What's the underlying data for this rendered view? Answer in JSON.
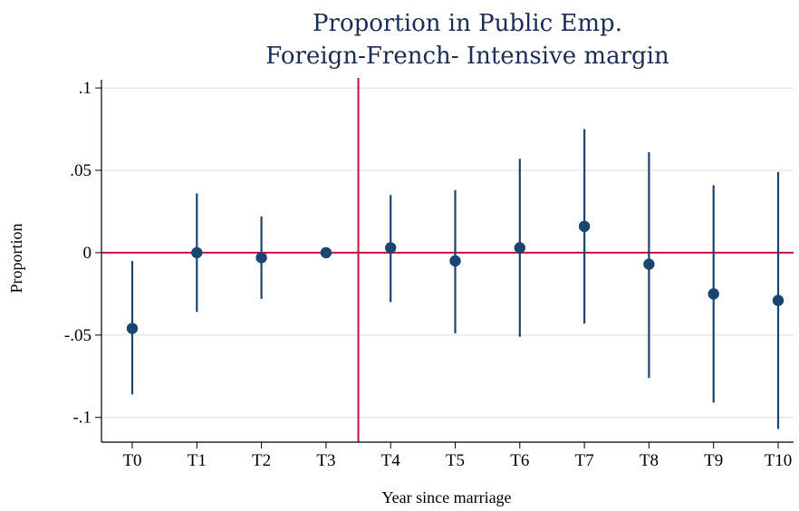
{
  "chart_data": {
    "type": "scatter",
    "title": [
      "Proportion in Public Emp.",
      "Foreign-French- Intensive margin"
    ],
    "xlabel": "Year since marriage",
    "ylabel": "Proportion",
    "categories": [
      "T0",
      "T1",
      "T2",
      "T3",
      "T4",
      "T5",
      "T6",
      "T7",
      "T8",
      "T9",
      "T10"
    ],
    "values": [
      -0.046,
      0.0,
      -0.003,
      0.0,
      0.003,
      -0.005,
      0.003,
      0.016,
      -0.007,
      -0.025,
      -0.029
    ],
    "ci_lower": [
      -0.086,
      -0.036,
      -0.028,
      0.0,
      -0.03,
      -0.049,
      -0.051,
      -0.043,
      -0.076,
      -0.091,
      -0.107
    ],
    "ci_upper": [
      -0.005,
      0.036,
      0.022,
      0.0,
      0.035,
      0.038,
      0.057,
      0.075,
      0.061,
      0.041,
      0.049
    ],
    "ylim": [
      -0.115,
      0.105
    ],
    "yticks": [
      0.1,
      0.05,
      0,
      -0.05,
      -0.1
    ],
    "ytick_labels": [
      ".1",
      ".05",
      "0",
      "-.05",
      "-.1"
    ],
    "grid": true,
    "reference_lines": {
      "horizontal_y": 0,
      "vertical_between": [
        "T3",
        "T4"
      ]
    },
    "colors": {
      "points": "#1a4570",
      "ci": "#1a4570",
      "reference": "#c8103e",
      "grid": "#dcdcdc",
      "title": "#1a2d57"
    }
  }
}
